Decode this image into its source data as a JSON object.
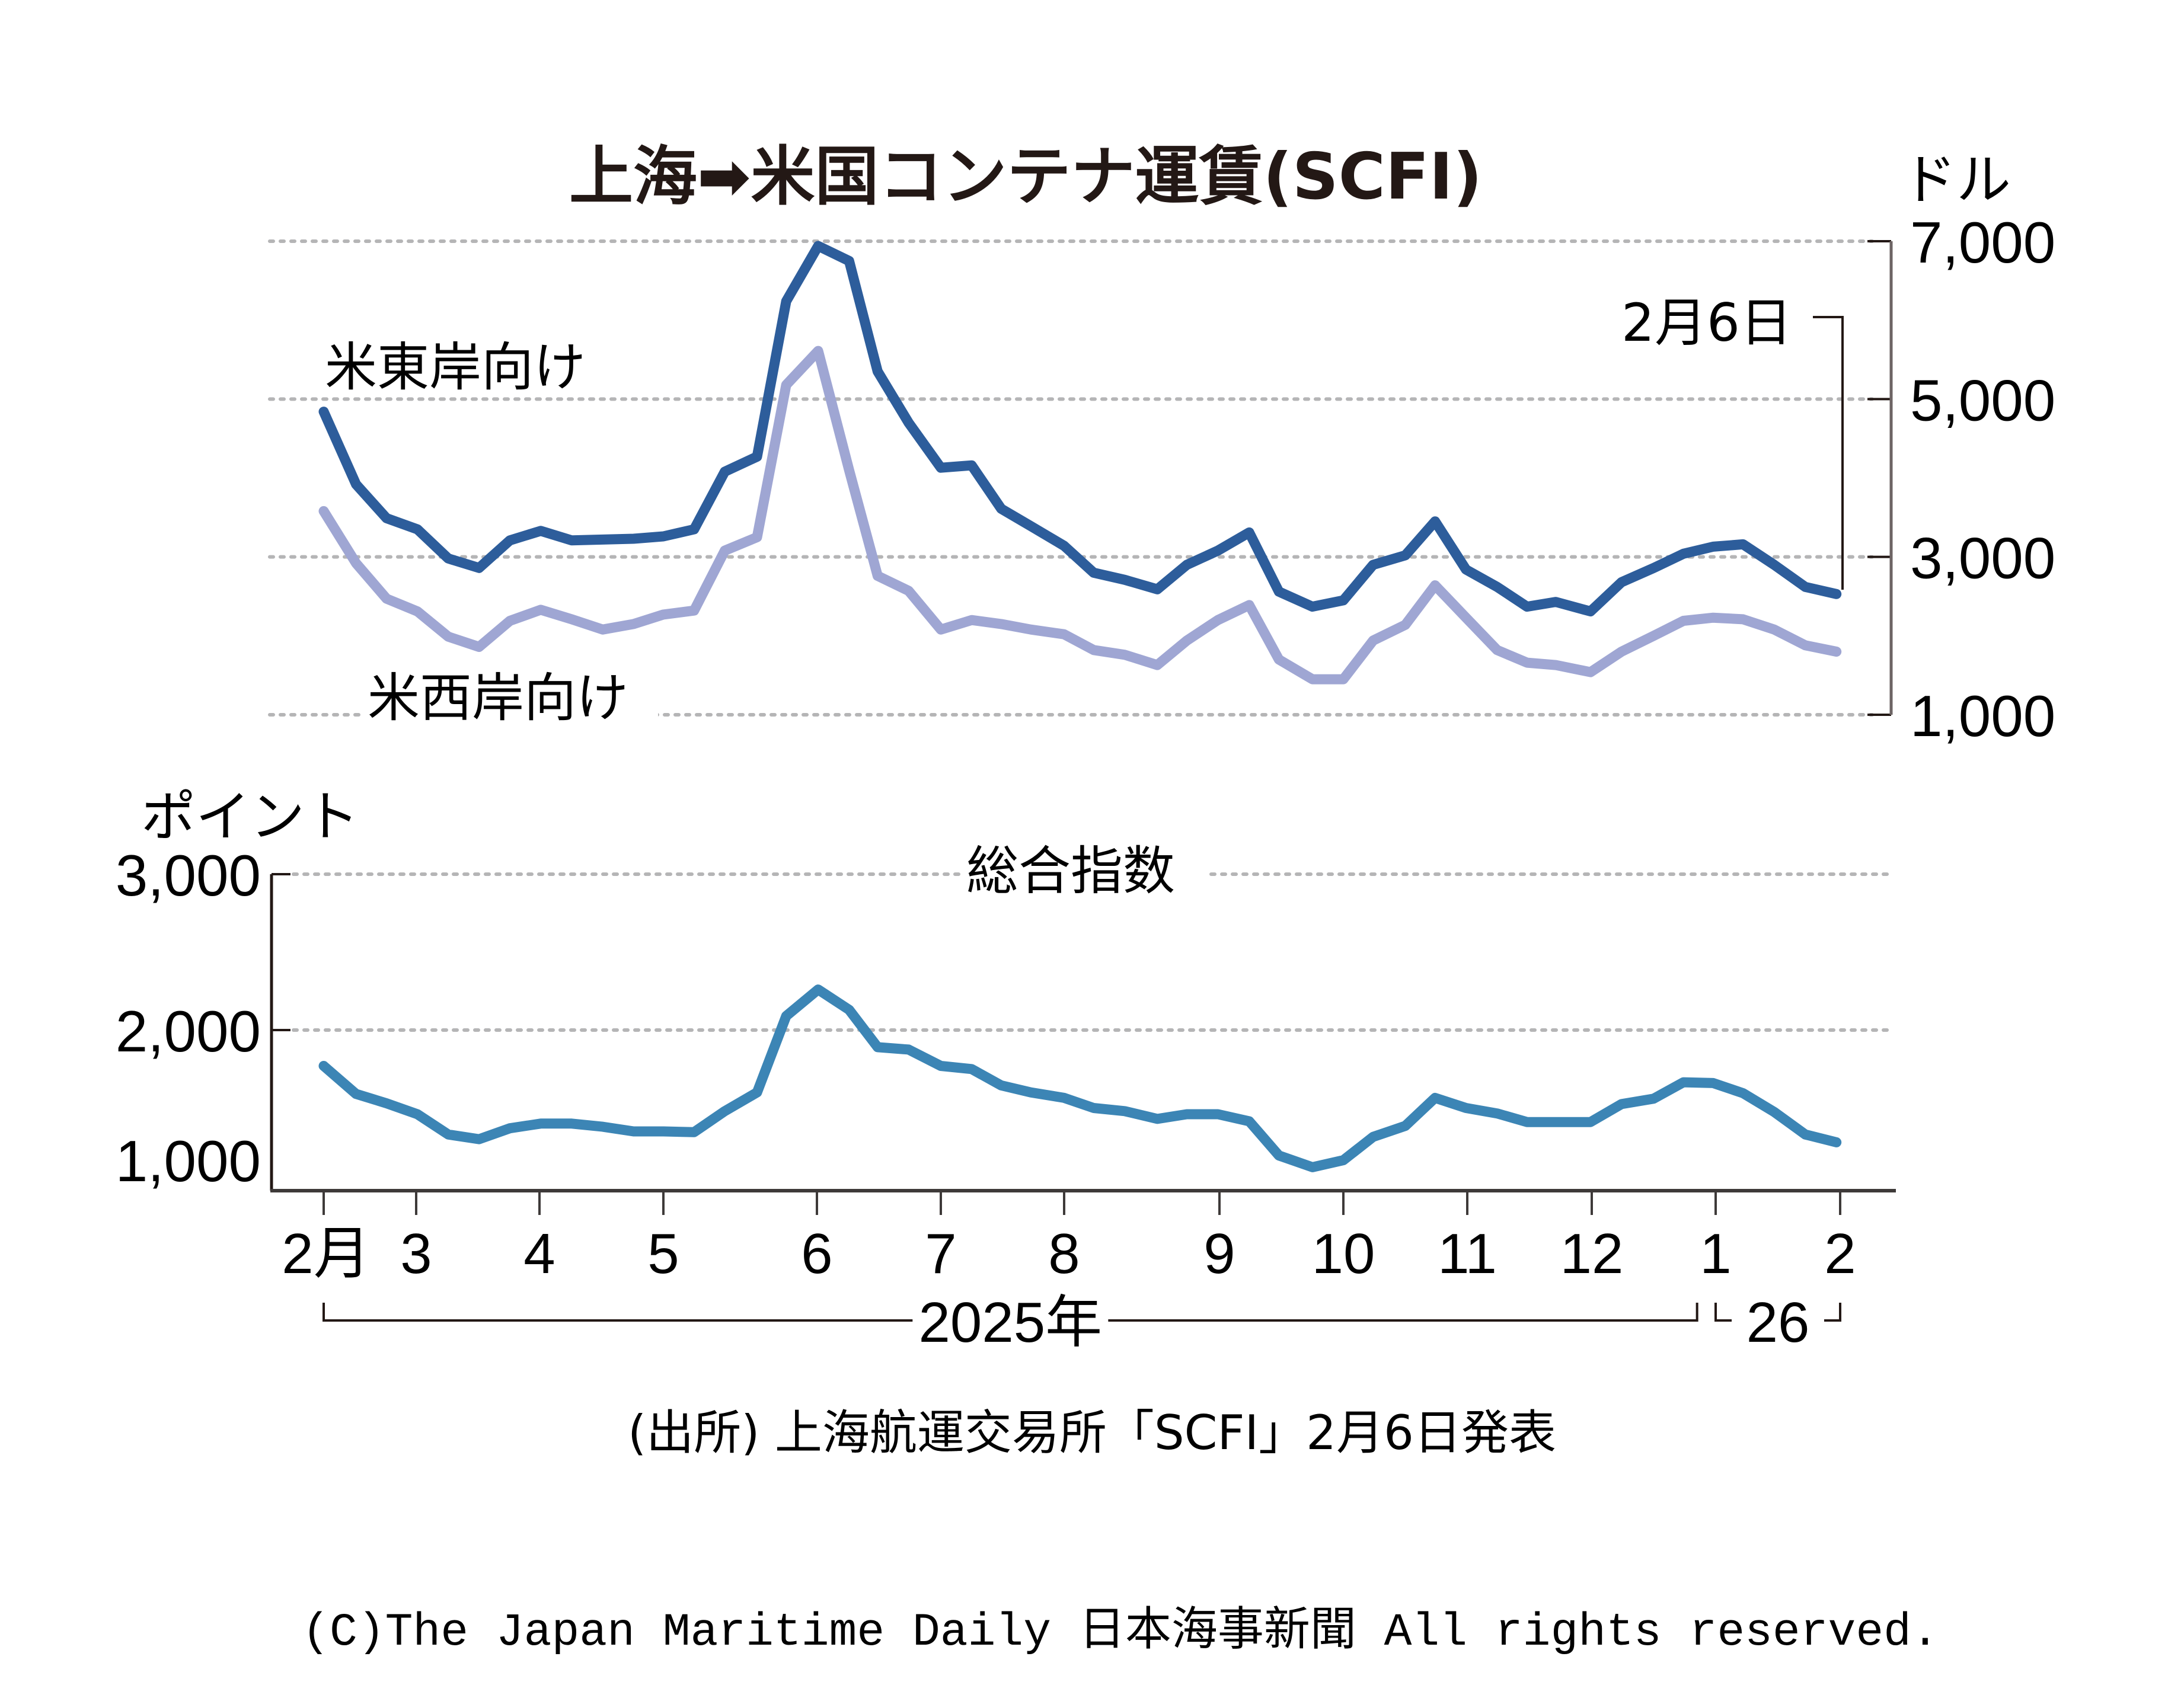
{
  "chart_data": [
    {
      "type": "line",
      "title": "上海➡米国コンテナ運賃(SCFI)",
      "ylabel": "ドル",
      "y_axis_side": "right",
      "ylim": [
        1000,
        7000
      ],
      "yticks": [
        7000,
        5000,
        3000,
        1000
      ],
      "ytick_labels": [
        "7,000",
        "5,000",
        "3,000",
        "1,000"
      ],
      "grid": true,
      "x_unit": "months since Feb 2025 (0 = 2025-02, 12 = 2026-02)",
      "x": [
        0.0,
        0.35,
        0.68,
        1.01,
        1.26,
        1.51,
        1.76,
        2.01,
        2.26,
        2.51,
        2.76,
        3.0,
        3.2,
        3.4,
        3.61,
        3.8,
        4.01,
        4.26,
        4.49,
        4.74,
        5.0,
        5.25,
        5.49,
        5.73,
        6.0,
        6.19,
        6.39,
        6.6,
        6.79,
        6.99,
        7.24,
        7.48,
        7.75,
        8.0,
        8.24,
        8.5,
        8.74,
        8.99,
        9.24,
        9.48,
        9.71,
        9.99,
        10.24,
        10.5,
        10.74,
        10.98,
        11.22,
        11.47,
        11.72,
        11.97
      ],
      "series": [
        {
          "name": "米東岸向け",
          "color": "#2d5d9b",
          "values": [
            4840,
            3920,
            3490,
            3350,
            2980,
            2860,
            3210,
            3330,
            3210,
            3220,
            3230,
            3260,
            3350,
            4080,
            4270,
            6240,
            6940,
            6750,
            5350,
            4700,
            4130,
            4160,
            3610,
            3390,
            3140,
            2800,
            2710,
            2590,
            2900,
            3080,
            3310,
            2560,
            2370,
            2450,
            2900,
            3020,
            3450,
            2840,
            2620,
            2370,
            2430,
            2310,
            2680,
            2860,
            3040,
            3130,
            3160,
            2900,
            2620,
            2530
          ]
        },
        {
          "name": "米西岸向け",
          "color": "#9fa6d3",
          "values": [
            3580,
            2920,
            2470,
            2310,
            1990,
            1860,
            2190,
            2330,
            2210,
            2080,
            2150,
            2270,
            2320,
            3080,
            3250,
            5180,
            5610,
            4100,
            2760,
            2570,
            2080,
            2200,
            2150,
            2080,
            2020,
            1820,
            1760,
            1630,
            1940,
            2200,
            2390,
            1700,
            1450,
            1450,
            1940,
            2140,
            2640,
            2230,
            1820,
            1660,
            1630,
            1540,
            1800,
            2000,
            2190,
            2230,
            2210,
            2080,
            1880,
            1800
          ]
        }
      ],
      "annotation": "2月6日"
    },
    {
      "type": "line",
      "title": "総合指数",
      "ylabel": "ポイント",
      "y_axis_side": "left",
      "ylim": [
        1000,
        3000
      ],
      "yticks": [
        3000,
        2000,
        1000
      ],
      "ytick_labels": [
        "3,000",
        "2,000",
        "1,000"
      ],
      "grid": true,
      "x_unit": "months since Feb 2025 (0 = 2025-02, 12 = 2026-02)",
      "x": [
        0.0,
        0.35,
        0.68,
        1.01,
        1.26,
        1.51,
        1.76,
        2.01,
        2.26,
        2.51,
        2.76,
        3.0,
        3.2,
        3.4,
        3.61,
        3.8,
        4.01,
        4.26,
        4.49,
        4.74,
        5.0,
        5.25,
        5.49,
        5.73,
        6.0,
        6.19,
        6.39,
        6.6,
        6.79,
        6.99,
        7.24,
        7.48,
        7.75,
        8.0,
        8.24,
        8.5,
        8.74,
        8.99,
        9.24,
        9.48,
        9.71,
        9.99,
        10.24,
        10.5,
        10.74,
        10.98,
        11.22,
        11.47,
        11.72,
        11.97
      ],
      "series": [
        {
          "name": "総合指数",
          "color": "#3c85b5",
          "values": [
            1770,
            1590,
            1530,
            1460,
            1330,
            1300,
            1370,
            1400,
            1400,
            1380,
            1350,
            1350,
            1345,
            1480,
            1600,
            2090,
            2260,
            2130,
            1890,
            1875,
            1770,
            1750,
            1645,
            1600,
            1565,
            1500,
            1480,
            1430,
            1460,
            1460,
            1415,
            1195,
            1120,
            1165,
            1315,
            1385,
            1565,
            1500,
            1465,
            1410,
            1410,
            1410,
            1525,
            1560,
            1665,
            1660,
            1595,
            1475,
            1330,
            1280
          ]
        }
      ],
      "xtick_labels": [
        "2月",
        "3",
        "4",
        "5",
        "6",
        "7",
        "8",
        "9",
        "10",
        "11",
        "12",
        "1",
        "2"
      ],
      "xtick_values": [
        0,
        1,
        2,
        3,
        4,
        5,
        6,
        7,
        8,
        9,
        10,
        11,
        12
      ],
      "year_labels": [
        {
          "label": "2025年",
          "from": 0,
          "to": 10.85
        },
        {
          "label": "26",
          "from": 11,
          "to": 12
        }
      ]
    }
  ],
  "text": {
    "title": "上海➡米国コンテナ運賃(SCFI)",
    "upper_unit": "ドル",
    "lower_unit": "ポイント",
    "east_label": "米東岸向け",
    "west_label": "米西岸向け",
    "composite_label": "総合指数",
    "date_annotation": "2月6日",
    "source": "(出所) 上海航運交易所「SCFI」2月6日発表",
    "copyright": "(C)The Japan Maritime Daily 日本海事新聞 All rights reserved."
  }
}
